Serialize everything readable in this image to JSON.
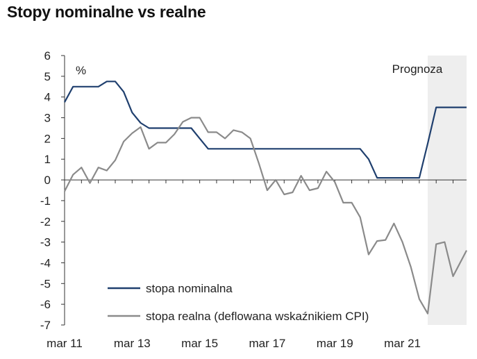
{
  "chart_data": {
    "type": "line",
    "title": "Stopy nominalne vs realne",
    "unit_label": "%",
    "forecast_label": "Prognoza",
    "ylim": [
      -7,
      6
    ],
    "y_ticks": [
      "6",
      "5",
      "4",
      "3",
      "2",
      "1",
      "0",
      "-1",
      "-2",
      "-3",
      "-4",
      "-5",
      "-6",
      "-7"
    ],
    "xlim": [
      2011.0,
      2022.9
    ],
    "x_ticks": [
      {
        "x": 2011.0,
        "label": "mar 11"
      },
      {
        "x": 2013.0,
        "label": "mar 13"
      },
      {
        "x": 2015.0,
        "label": "mar 15"
      },
      {
        "x": 2017.0,
        "label": "mar 17"
      },
      {
        "x": 2019.0,
        "label": "mar 19"
      },
      {
        "x": 2021.0,
        "label": "mar 21"
      }
    ],
    "forecast_start": 2021.75,
    "grid": false,
    "legend_position": "bottom-left",
    "series": [
      {
        "name": "stopa nominalna",
        "color": "#1f3f6e",
        "points": [
          [
            2011.0,
            3.75
          ],
          [
            2011.25,
            4.5
          ],
          [
            2011.5,
            4.5
          ],
          [
            2011.75,
            4.5
          ],
          [
            2012.0,
            4.5
          ],
          [
            2012.25,
            4.75
          ],
          [
            2012.5,
            4.75
          ],
          [
            2012.75,
            4.25
          ],
          [
            2013.0,
            3.25
          ],
          [
            2013.25,
            2.75
          ],
          [
            2013.5,
            2.5
          ],
          [
            2013.75,
            2.5
          ],
          [
            2014.0,
            2.5
          ],
          [
            2014.25,
            2.5
          ],
          [
            2014.5,
            2.5
          ],
          [
            2014.75,
            2.5
          ],
          [
            2015.0,
            2.0
          ],
          [
            2015.25,
            1.5
          ],
          [
            2015.5,
            1.5
          ],
          [
            2016.0,
            1.5
          ],
          [
            2017.0,
            1.5
          ],
          [
            2018.0,
            1.5
          ],
          [
            2019.0,
            1.5
          ],
          [
            2019.5,
            1.5
          ],
          [
            2019.75,
            1.5
          ],
          [
            2020.0,
            1.0
          ],
          [
            2020.25,
            0.1
          ],
          [
            2020.5,
            0.1
          ],
          [
            2021.0,
            0.1
          ],
          [
            2021.5,
            0.1
          ],
          [
            2021.75,
            1.75
          ],
          [
            2022.0,
            3.5
          ],
          [
            2022.5,
            3.5
          ],
          [
            2022.9,
            3.5
          ]
        ]
      },
      {
        "name": "stopa realna (deflowana wskaźnikiem CPI)",
        "color": "#8a8a8a",
        "points": [
          [
            2011.0,
            -0.55
          ],
          [
            2011.25,
            0.25
          ],
          [
            2011.5,
            0.6
          ],
          [
            2011.75,
            -0.15
          ],
          [
            2012.0,
            0.6
          ],
          [
            2012.25,
            0.45
          ],
          [
            2012.5,
            0.95
          ],
          [
            2012.75,
            1.85
          ],
          [
            2013.0,
            2.25
          ],
          [
            2013.25,
            2.55
          ],
          [
            2013.5,
            1.5
          ],
          [
            2013.75,
            1.8
          ],
          [
            2014.0,
            1.8
          ],
          [
            2014.25,
            2.2
          ],
          [
            2014.5,
            2.8
          ],
          [
            2014.75,
            3.0
          ],
          [
            2015.0,
            3.0
          ],
          [
            2015.25,
            2.3
          ],
          [
            2015.5,
            2.3
          ],
          [
            2015.75,
            2.0
          ],
          [
            2016.0,
            2.4
          ],
          [
            2016.25,
            2.3
          ],
          [
            2016.5,
            2.0
          ],
          [
            2016.75,
            0.8
          ],
          [
            2017.0,
            -0.5
          ],
          [
            2017.25,
            0.0
          ],
          [
            2017.5,
            -0.7
          ],
          [
            2017.75,
            -0.6
          ],
          [
            2018.0,
            0.2
          ],
          [
            2018.25,
            -0.5
          ],
          [
            2018.5,
            -0.4
          ],
          [
            2018.75,
            0.4
          ],
          [
            2019.0,
            -0.1
          ],
          [
            2019.25,
            -1.1
          ],
          [
            2019.5,
            -1.1
          ],
          [
            2019.75,
            -1.8
          ],
          [
            2020.0,
            -3.6
          ],
          [
            2020.25,
            -2.95
          ],
          [
            2020.5,
            -2.9
          ],
          [
            2020.75,
            -2.1
          ],
          [
            2021.0,
            -3.0
          ],
          [
            2021.25,
            -4.2
          ],
          [
            2021.5,
            -5.75
          ],
          [
            2021.75,
            -6.45
          ],
          [
            2022.0,
            -3.1
          ],
          [
            2022.25,
            -3.0
          ],
          [
            2022.5,
            -4.65
          ],
          [
            2022.9,
            -3.4
          ]
        ]
      }
    ]
  }
}
